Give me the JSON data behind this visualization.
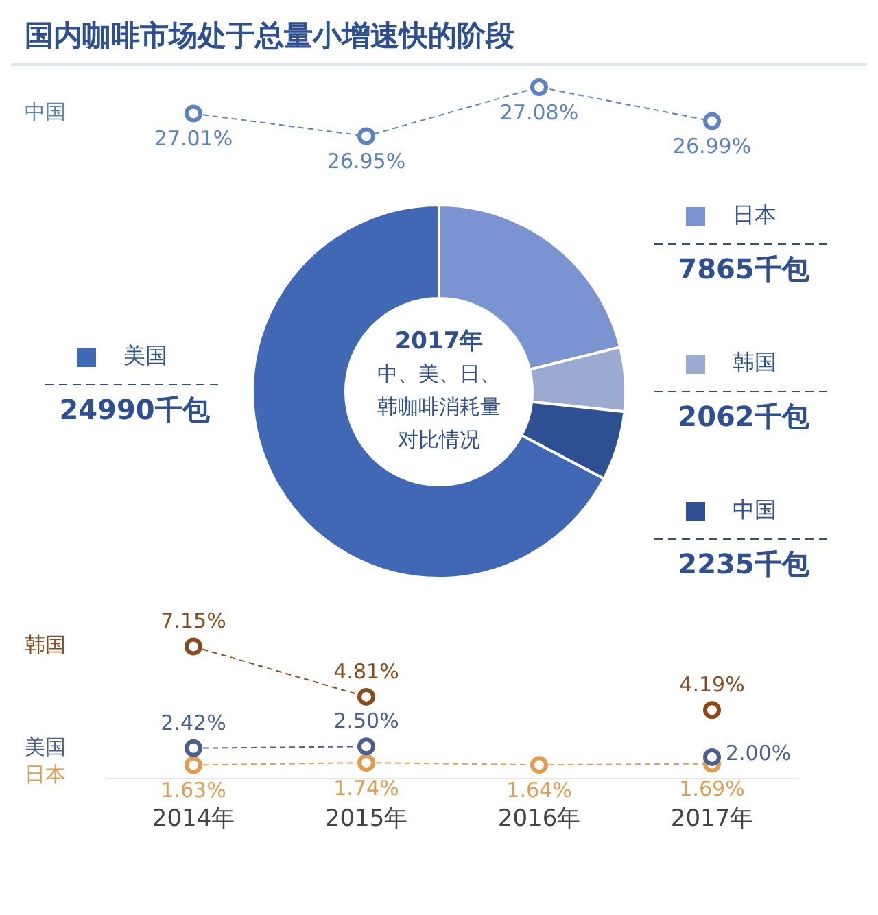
{
  "chart_data": [
    {
      "type": "line",
      "title": "国内咖啡市场处于总量小增速快的阶段",
      "categories": [
        null,
        null,
        null,
        null
      ],
      "series": [
        {
          "name": "中国",
          "color": "#5b82c2",
          "values": [
            27.01,
            26.95,
            27.08,
            26.99
          ],
          "value_labels": [
            "27.01%",
            "26.95%",
            "27.08%",
            "26.99%"
          ]
        }
      ],
      "tick_labels": false,
      "marker": "circle",
      "line_style": "dashed",
      "legend": false,
      "grid": false
    },
    {
      "type": "donut",
      "annotations": [
        "2017年",
        "中、美、日、韩咖啡消耗量对比情况"
      ],
      "categories": [
        "日本",
        "韩国",
        "中国",
        "美国"
      ],
      "values": [
        7865,
        2062,
        2235,
        24990
      ],
      "colors": [
        "#7b93d1",
        "#9aaad0",
        "#2f4f93",
        "#4068b4"
      ],
      "value_labels": [
        "7865千包",
        "2062千包",
        "2235千包",
        "24990千包"
      ],
      "legend": "right"
    },
    {
      "type": "line",
      "categories": [
        "2014年",
        "2015年",
        "2016年",
        "2017年"
      ],
      "series": [
        {
          "name": "韩国",
          "color": "#8b4a1c",
          "values": [
            7.15,
            4.81,
            null,
            4.19
          ],
          "value_labels": [
            "7.15%",
            "4.81%",
            null,
            "4.19%"
          ]
        },
        {
          "name": "美国",
          "color": "#4b5f8f",
          "values": [
            2.42,
            2.5,
            null,
            2.0
          ],
          "value_labels": [
            "2.42%",
            "2.50%",
            null,
            "2.00%"
          ]
        },
        {
          "name": "日本",
          "color": "#e39b4f",
          "values": [
            1.63,
            1.74,
            1.64,
            1.69
          ],
          "value_labels": [
            "1.63%",
            "1.74%",
            "1.64%",
            "1.69%"
          ]
        }
      ],
      "tick_labels": "x",
      "marker": "circle",
      "line_style": "dashed",
      "legend": false,
      "grid": false
    }
  ]
}
